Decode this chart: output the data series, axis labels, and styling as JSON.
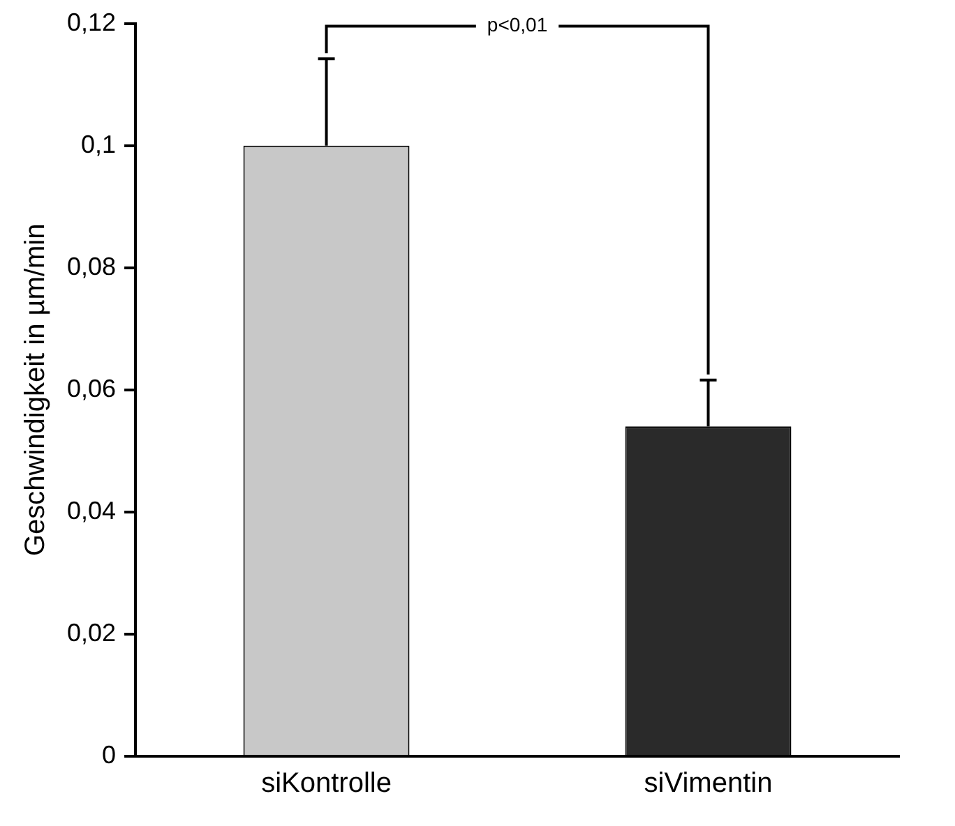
{
  "chart_data": {
    "type": "bar",
    "ylabel": "Geschwindigkeit in µm/min",
    "categories": [
      "siKontrolle",
      "siVimentin"
    ],
    "values": [
      0.1,
      0.054
    ],
    "errors": [
      [
        0.1,
        0.1142
      ],
      [
        0.054,
        0.0616
      ]
    ],
    "colors": [
      "#c8c8c8",
      "#2a2a2a"
    ],
    "ylim": [
      0,
      0.12
    ],
    "yticks": [
      {
        "value": 0,
        "label": "0"
      },
      {
        "value": 0.02,
        "label": "0,02"
      },
      {
        "value": 0.04,
        "label": "0,04"
      },
      {
        "value": 0.06,
        "label": "0,06"
      },
      {
        "value": 0.08,
        "label": "0,08"
      },
      {
        "value": 0.1,
        "label": "0,1"
      },
      {
        "value": 0.12,
        "label": "0,12"
      }
    ],
    "annotations": [
      {
        "text": "p<0,01",
        "x": "siKontrolle",
        "y": 0.1142
      }
    ],
    "grid": false,
    "legend": false
  }
}
